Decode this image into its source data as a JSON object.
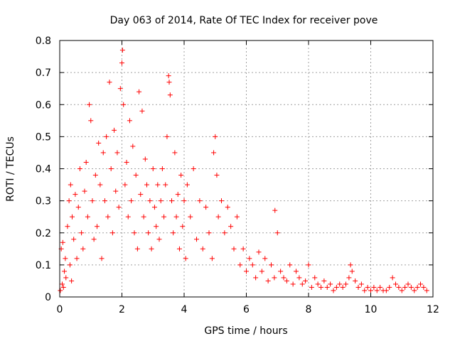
{
  "chart_data": {
    "type": "scatter",
    "title": "Day 063 of 2014, Rate Of TEC Index for receiver pove",
    "xlabel": "GPS time / hours",
    "ylabel": "ROTI / TECUs",
    "xlim": [
      0,
      12
    ],
    "ylim": [
      0,
      0.8
    ],
    "xticks": [
      0,
      2,
      4,
      6,
      8,
      10,
      12
    ],
    "yticks": [
      0,
      0.1,
      0.2,
      0.3,
      0.4,
      0.5,
      0.6,
      0.7,
      0.8
    ],
    "xtick_labels": [
      "0",
      "2",
      "4",
      "6",
      "8",
      "10",
      "12"
    ],
    "ytick_labels": [
      "0",
      "0.1",
      "0.2",
      "0.3",
      "0.4",
      "0.5",
      "0.6",
      "0.7",
      "0.8"
    ],
    "grid": true,
    "marker": "+",
    "color": "#ff0000",
    "series": [
      {
        "name": "ROTI",
        "x": [
          0.02,
          0.05,
          0.08,
          0.1,
          0.12,
          0.15,
          0.18,
          0.2,
          0.25,
          0.3,
          0.33,
          0.35,
          0.38,
          0.4,
          0.45,
          0.5,
          0.55,
          0.6,
          0.65,
          0.7,
          0.75,
          0.8,
          0.85,
          0.9,
          0.95,
          1.0,
          1.05,
          1.1,
          1.15,
          1.2,
          1.25,
          1.3,
          1.35,
          1.4,
          1.45,
          1.5,
          1.55,
          1.6,
          1.65,
          1.7,
          1.75,
          1.8,
          1.85,
          1.9,
          1.95,
          2.0,
          2.02,
          2.05,
          2.1,
          2.15,
          2.2,
          2.25,
          2.3,
          2.35,
          2.4,
          2.45,
          2.5,
          2.55,
          2.6,
          2.65,
          2.7,
          2.75,
          2.8,
          2.85,
          2.9,
          2.95,
          3.0,
          3.05,
          3.1,
          3.15,
          3.2,
          3.25,
          3.3,
          3.35,
          3.4,
          3.45,
          3.5,
          3.52,
          3.55,
          3.6,
          3.65,
          3.7,
          3.75,
          3.8,
          3.85,
          3.9,
          3.95,
          4.0,
          4.05,
          4.1,
          4.2,
          4.3,
          4.4,
          4.5,
          4.6,
          4.7,
          4.8,
          4.9,
          4.95,
          5.0,
          5.05,
          5.1,
          5.2,
          5.3,
          5.4,
          5.5,
          5.6,
          5.7,
          5.8,
          5.9,
          6.0,
          6.1,
          6.2,
          6.3,
          6.4,
          6.5,
          6.6,
          6.7,
          6.8,
          6.9,
          6.92,
          7.0,
          7.1,
          7.2,
          7.3,
          7.4,
          7.5,
          7.6,
          7.7,
          7.8,
          7.9,
          8.0,
          8.1,
          8.2,
          8.3,
          8.4,
          8.5,
          8.6,
          8.7,
          8.8,
          8.9,
          9.0,
          9.1,
          9.2,
          9.3,
          9.35,
          9.4,
          9.5,
          9.6,
          9.7,
          9.8,
          9.9,
          10.0,
          10.1,
          10.2,
          10.3,
          10.4,
          10.5,
          10.6,
          10.7,
          10.8,
          10.9,
          11.0,
          11.1,
          11.2,
          11.3,
          11.4,
          11.5,
          11.6,
          11.7,
          11.8
        ],
        "y": [
          0.02,
          0.15,
          0.04,
          0.17,
          0.03,
          0.08,
          0.12,
          0.06,
          0.22,
          0.3,
          0.1,
          0.35,
          0.05,
          0.25,
          0.18,
          0.32,
          0.12,
          0.28,
          0.4,
          0.2,
          0.15,
          0.33,
          0.42,
          0.25,
          0.6,
          0.55,
          0.3,
          0.18,
          0.38,
          0.22,
          0.48,
          0.35,
          0.12,
          0.45,
          0.3,
          0.5,
          0.25,
          0.67,
          0.4,
          0.2,
          0.52,
          0.33,
          0.45,
          0.28,
          0.65,
          0.73,
          0.77,
          0.6,
          0.35,
          0.42,
          0.25,
          0.55,
          0.3,
          0.47,
          0.2,
          0.38,
          0.15,
          0.64,
          0.32,
          0.58,
          0.25,
          0.43,
          0.35,
          0.2,
          0.3,
          0.15,
          0.4,
          0.28,
          0.22,
          0.35,
          0.18,
          0.3,
          0.4,
          0.25,
          0.35,
          0.5,
          0.69,
          0.67,
          0.63,
          0.3,
          0.2,
          0.45,
          0.25,
          0.32,
          0.15,
          0.38,
          0.22,
          0.3,
          0.12,
          0.35,
          0.25,
          0.4,
          0.18,
          0.3,
          0.15,
          0.28,
          0.2,
          0.12,
          0.45,
          0.5,
          0.38,
          0.25,
          0.3,
          0.2,
          0.28,
          0.22,
          0.15,
          0.25,
          0.1,
          0.15,
          0.08,
          0.12,
          0.1,
          0.06,
          0.14,
          0.08,
          0.12,
          0.05,
          0.1,
          0.06,
          0.27,
          0.2,
          0.08,
          0.06,
          0.05,
          0.1,
          0.04,
          0.08,
          0.06,
          0.04,
          0.05,
          0.1,
          0.03,
          0.06,
          0.04,
          0.03,
          0.05,
          0.03,
          0.04,
          0.02,
          0.03,
          0.04,
          0.03,
          0.04,
          0.06,
          0.1,
          0.08,
          0.05,
          0.03,
          0.04,
          0.02,
          0.03,
          0.02,
          0.03,
          0.02,
          0.03,
          0.02,
          0.02,
          0.03,
          0.06,
          0.04,
          0.03,
          0.02,
          0.03,
          0.04,
          0.03,
          0.02,
          0.03,
          0.04,
          0.03,
          0.02
        ]
      }
    ]
  }
}
